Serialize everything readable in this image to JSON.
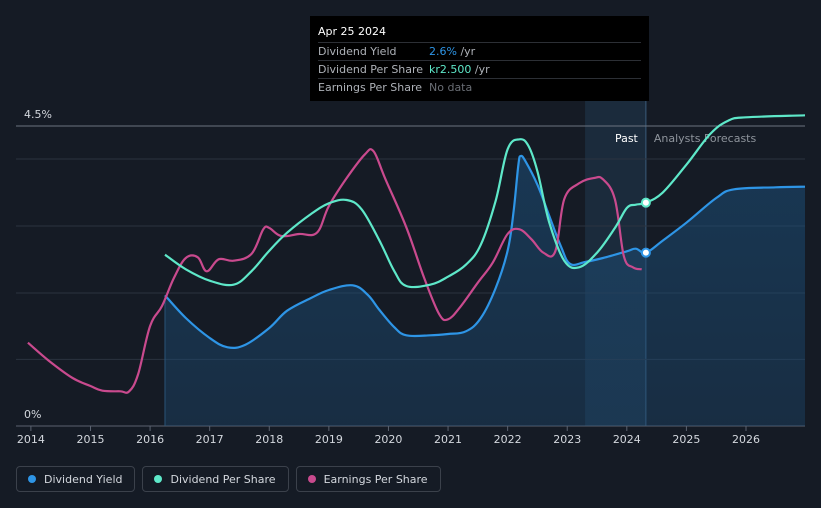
{
  "tooltip": {
    "date": "Apr 25 2024",
    "rows": [
      {
        "label": "Dividend Yield",
        "value": "2.6%",
        "unit": " /yr",
        "color": "#2e95e6"
      },
      {
        "label": "Dividend Per Share",
        "value": "kr2.500",
        "unit": " /yr",
        "color": "#5ee8c9"
      },
      {
        "label": "Earnings Per Share",
        "value": "No data",
        "unit": "",
        "color": "#6a6e75"
      }
    ]
  },
  "legend": [
    {
      "label": "Dividend Yield",
      "color": "#2e95e6"
    },
    {
      "label": "Dividend Per Share",
      "color": "#5ee8c9"
    },
    {
      "label": "Earnings Per Share",
      "color": "#c94a8e"
    }
  ],
  "chart_data": {
    "type": "line",
    "y_axis_labels": [
      "4.5%",
      "0%"
    ],
    "ylim": [
      0,
      4.5
    ],
    "xlim": [
      2013.75,
      2026.99
    ],
    "x_ticks": [
      2014,
      2015,
      2016,
      2017,
      2018,
      2019,
      2020,
      2021,
      2022,
      2023,
      2024,
      2025,
      2026
    ],
    "zones": {
      "past_label": "Past",
      "forecast_label": "Analysts Forecasts",
      "past_start": 2023.3,
      "now": 2024.32
    },
    "series": [
      {
        "name": "Dividend Yield",
        "color": "#2e95e6",
        "area": true,
        "points": [
          [
            2016.25,
            1.96
          ],
          [
            2016.6,
            1.62
          ],
          [
            2017.0,
            1.32
          ],
          [
            2017.3,
            1.18
          ],
          [
            2017.6,
            1.22
          ],
          [
            2018.0,
            1.47
          ],
          [
            2018.3,
            1.73
          ],
          [
            2018.7,
            1.92
          ],
          [
            2019.0,
            2.04
          ],
          [
            2019.4,
            2.11
          ],
          [
            2019.65,
            1.97
          ],
          [
            2019.85,
            1.74
          ],
          [
            2020.1,
            1.48
          ],
          [
            2020.3,
            1.36
          ],
          [
            2020.7,
            1.36
          ],
          [
            2021.0,
            1.38
          ],
          [
            2021.3,
            1.42
          ],
          [
            2021.55,
            1.62
          ],
          [
            2021.8,
            2.07
          ],
          [
            2022.0,
            2.63
          ],
          [
            2022.1,
            3.22
          ],
          [
            2022.18,
            3.92
          ],
          [
            2022.22,
            4.05
          ],
          [
            2022.3,
            3.97
          ],
          [
            2022.5,
            3.62
          ],
          [
            2022.7,
            3.15
          ],
          [
            2022.9,
            2.68
          ],
          [
            2023.05,
            2.43
          ],
          [
            2023.3,
            2.46
          ],
          [
            2023.6,
            2.52
          ],
          [
            2024.0,
            2.62
          ],
          [
            2024.15,
            2.66
          ],
          [
            2024.32,
            2.6
          ],
          [
            2024.6,
            2.78
          ],
          [
            2025.0,
            3.05
          ],
          [
            2025.5,
            3.42
          ],
          [
            2025.8,
            3.55
          ],
          [
            2026.5,
            3.58
          ],
          [
            2026.99,
            3.59
          ]
        ]
      },
      {
        "name": "Dividend Per Share",
        "color": "#5ee8c9",
        "area": false,
        "points": [
          [
            2016.25,
            2.57
          ],
          [
            2016.6,
            2.35
          ],
          [
            2017.0,
            2.18
          ],
          [
            2017.4,
            2.12
          ],
          [
            2017.7,
            2.32
          ],
          [
            2018.0,
            2.63
          ],
          [
            2018.3,
            2.9
          ],
          [
            2018.7,
            3.18
          ],
          [
            2019.0,
            3.34
          ],
          [
            2019.3,
            3.39
          ],
          [
            2019.55,
            3.25
          ],
          [
            2019.85,
            2.78
          ],
          [
            2020.1,
            2.32
          ],
          [
            2020.3,
            2.1
          ],
          [
            2020.7,
            2.12
          ],
          [
            2021.0,
            2.24
          ],
          [
            2021.3,
            2.42
          ],
          [
            2021.55,
            2.72
          ],
          [
            2021.8,
            3.38
          ],
          [
            2022.0,
            4.15
          ],
          [
            2022.2,
            4.3
          ],
          [
            2022.35,
            4.2
          ],
          [
            2022.5,
            3.82
          ],
          [
            2022.7,
            3.05
          ],
          [
            2022.95,
            2.48
          ],
          [
            2023.2,
            2.38
          ],
          [
            2023.5,
            2.6
          ],
          [
            2023.8,
            2.97
          ],
          [
            2024.0,
            3.27
          ],
          [
            2024.15,
            3.32
          ],
          [
            2024.32,
            3.35
          ],
          [
            2024.6,
            3.5
          ],
          [
            2025.0,
            3.92
          ],
          [
            2025.4,
            4.38
          ],
          [
            2025.7,
            4.58
          ],
          [
            2026.0,
            4.63
          ],
          [
            2026.99,
            4.66
          ]
        ]
      },
      {
        "name": "Earnings Per Share",
        "color": "#c94a8e",
        "area": false,
        "points": [
          [
            2013.95,
            1.25
          ],
          [
            2014.3,
            0.98
          ],
          [
            2014.7,
            0.72
          ],
          [
            2015.0,
            0.6
          ],
          [
            2015.2,
            0.53
          ],
          [
            2015.5,
            0.52
          ],
          [
            2015.65,
            0.52
          ],
          [
            2015.8,
            0.78
          ],
          [
            2016.0,
            1.5
          ],
          [
            2016.2,
            1.8
          ],
          [
            2016.4,
            2.22
          ],
          [
            2016.6,
            2.52
          ],
          [
            2016.8,
            2.53
          ],
          [
            2016.95,
            2.32
          ],
          [
            2017.15,
            2.5
          ],
          [
            2017.4,
            2.48
          ],
          [
            2017.7,
            2.58
          ],
          [
            2017.9,
            2.95
          ],
          [
            2018.0,
            2.97
          ],
          [
            2018.2,
            2.85
          ],
          [
            2018.5,
            2.88
          ],
          [
            2018.8,
            2.9
          ],
          [
            2019.0,
            3.3
          ],
          [
            2019.3,
            3.72
          ],
          [
            2019.6,
            4.07
          ],
          [
            2019.75,
            4.12
          ],
          [
            2019.95,
            3.7
          ],
          [
            2020.3,
            2.98
          ],
          [
            2020.6,
            2.22
          ],
          [
            2020.85,
            1.68
          ],
          [
            2021.0,
            1.6
          ],
          [
            2021.2,
            1.78
          ],
          [
            2021.5,
            2.15
          ],
          [
            2021.75,
            2.45
          ],
          [
            2022.0,
            2.88
          ],
          [
            2022.2,
            2.95
          ],
          [
            2022.4,
            2.8
          ],
          [
            2022.6,
            2.6
          ],
          [
            2022.8,
            2.62
          ],
          [
            2022.95,
            3.4
          ],
          [
            2023.2,
            3.64
          ],
          [
            2023.45,
            3.72
          ],
          [
            2023.6,
            3.7
          ],
          [
            2023.8,
            3.4
          ],
          [
            2023.95,
            2.55
          ],
          [
            2024.1,
            2.38
          ],
          [
            2024.25,
            2.35
          ]
        ]
      }
    ],
    "markers": [
      {
        "series": "Dividend Per Share",
        "x": 2024.32,
        "y": 3.35
      },
      {
        "series": "Dividend Yield",
        "x": 2024.32,
        "y": 2.6
      }
    ]
  }
}
